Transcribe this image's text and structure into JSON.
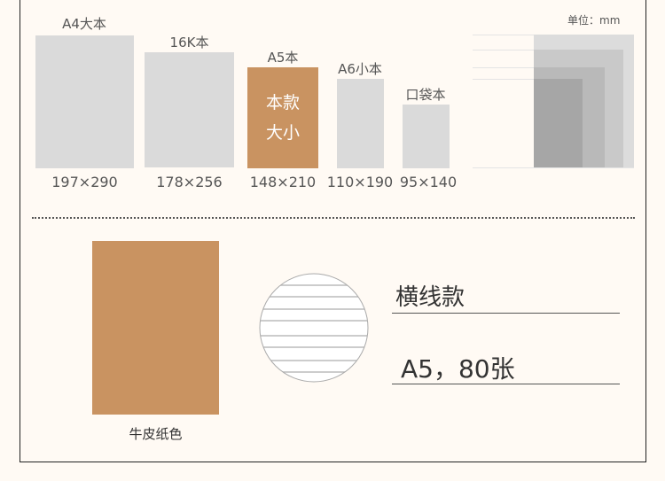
{
  "unit_label": "单位：mm",
  "sizes": [
    {
      "name": "A4大本",
      "dims": "197×290"
    },
    {
      "name": "16K本",
      "dims": "178×256"
    },
    {
      "name": "A5本",
      "dims": "148×210",
      "highlight_line1": "本款",
      "highlight_line2": "大小"
    },
    {
      "name": "A6小本",
      "dims": "110×190"
    },
    {
      "name": "口袋本",
      "dims": "95×140"
    }
  ],
  "cover_color_label": "牛皮纸色",
  "style_label": "横线款",
  "spec_label": "A5，80张",
  "colors": {
    "kraft": "#c99361",
    "gray_box": "#dadada",
    "background": "#fffaf4"
  }
}
